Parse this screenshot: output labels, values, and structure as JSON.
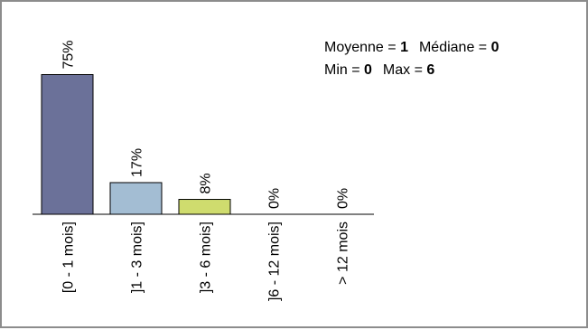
{
  "chart_data": {
    "type": "bar",
    "categories": [
      "[0 - 1 mois]",
      "]1 - 3 mois]",
      "]3 - 6 mois]",
      "]6 - 12 mois]",
      "> 12 mois"
    ],
    "values": [
      75,
      17,
      8,
      0,
      0
    ],
    "value_labels": [
      "75%",
      "17%",
      "8%",
      "0%",
      "0%"
    ],
    "colors": [
      "#6b7199",
      "#a3bdd3",
      "#cfdc6e",
      "#9fa5c8",
      "#c9d6e4"
    ],
    "ylim": [
      0,
      100
    ],
    "grid": false,
    "legend": "none",
    "title": "",
    "xlabel": "",
    "ylabel": ""
  },
  "stats": {
    "mean_label": "Moyenne = ",
    "mean_value": "1",
    "median_label": "Médiane = ",
    "median_value": "0",
    "min_label": "Min = ",
    "min_value": "0",
    "max_label": "Max = ",
    "max_value": "6"
  }
}
